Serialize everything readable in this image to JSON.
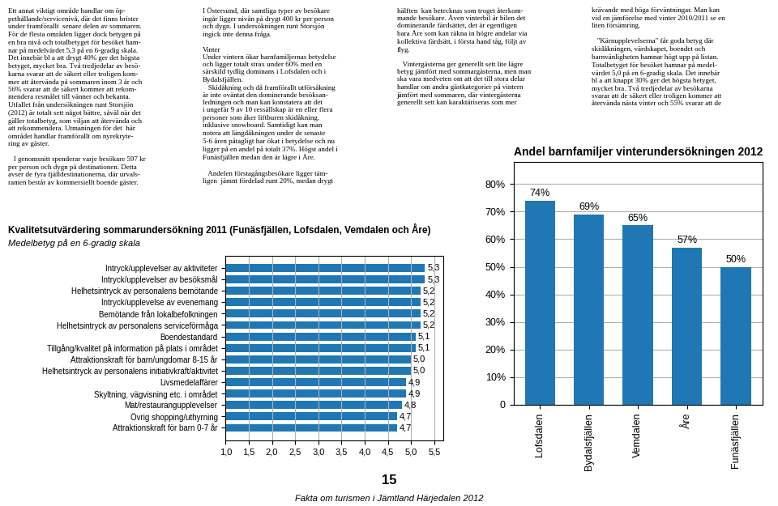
{
  "chart_data": [
    {
      "type": "bar",
      "title": "Andel barnfamiljer vinterundersökningen 2012",
      "categories": [
        "Lofsdalen",
        "Bydalsfjällen",
        "Vemdalen",
        "Åre",
        "Funäsfjällen"
      ],
      "values": [
        74,
        69,
        65,
        57,
        50
      ],
      "value_labels": [
        "74%",
        "69%",
        "65%",
        "57%",
        "50%"
      ],
      "data_labels": true,
      "ylim": [
        0,
        88
      ],
      "yticks": [
        0,
        {
          "value": 10,
          "label": "10%"
        },
        {
          "value": 20,
          "label": "20%"
        },
        {
          "value": 30,
          "label": "30%"
        },
        {
          "value": 40,
          "label": "40%"
        },
        {
          "value": 50,
          "label": "50%"
        },
        {
          "value": 60,
          "label": "60%"
        },
        {
          "value": 70,
          "label": "70%"
        },
        {
          "value": 80,
          "label": "80%"
        }
      ],
      "grid": true
    },
    {
      "type": "bar",
      "orientation": "horizontal",
      "title": "Kvalitetsutvärdering sommarundersökning 2011 (Funäsfjällen, Lofsdalen, Vemdalen och Åre)",
      "subtitle": "Medelbetyg på en 6-gradig skala",
      "categories": [
        "Intryck/upplevelser av aktiviteter",
        "Intryck/upplevelser av besöksmål",
        "Helhetsintryck av personalens bemötande",
        "Intryck/upplevelse av evenemang",
        "Bemötande från lokalbefolkningen",
        "Helhetsintryck av personalens serviceförmåga",
        "Boendestandard",
        "Tillgång/kvalitet på information på plats i området",
        "Attraktionskraft för barn/ungdomar 8-15 år",
        "Helhetsintryck av personalens initiativkraft/aktivitet",
        "Livsmedelaffärer",
        "Skyltning, vägvisning etc. i området",
        "Mat/restaurangupplevelser",
        "Övrig shopping/uthyrning",
        "Attraktionskraft för barn 0-7 år"
      ],
      "values": [
        5.3,
        5.3,
        5.2,
        5.2,
        5.2,
        5.2,
        5.1,
        5.1,
        5.0,
        5.0,
        4.9,
        4.9,
        4.8,
        4.7,
        4.7
      ],
      "value_labels": [
        "5,3",
        "5,3",
        "5,2",
        "5,2",
        "5,2",
        "5,2",
        "5,1",
        "5,1",
        "5,0",
        "5,0",
        "4,9",
        "4,9",
        "4,8",
        "4,7",
        "4,7"
      ],
      "data_labels": true,
      "xlim": [
        1.0,
        5.7
      ],
      "xticks": [
        {
          "value": 1.0,
          "label": "1,0"
        },
        {
          "value": 1.5,
          "label": "1,5"
        },
        {
          "value": 2.0,
          "label": "2,0"
        },
        {
          "value": 2.5,
          "label": "2,5"
        },
        {
          "value": 3.0,
          "label": "3,0"
        },
        {
          "value": 3.5,
          "label": "3,5"
        },
        {
          "value": 4.0,
          "label": "4,0"
        },
        {
          "value": 4.5,
          "label": "4,5"
        },
        {
          "value": 5.0,
          "label": "5,0"
        },
        {
          "value": 5.5,
          "label": "5,5"
        }
      ],
      "grid": true
    }
  ],
  "annotations": [
    "Ett annat viktigt område handlar om öp-\npethållande/servicenivå, där det finns brister\nunder framförallt  senare delen av sommaren.\nFör de flesta områden ligger dock betygen på\nen bra nivå och totalbetyget för besöket ham-\nnar på medelvärdet 5,3 på en 6-gradig skala.\nDet innebär bl a att drygt 40% ger det högsta\nbetyget, mycket bra. Två tredjedelar av besö-\nkarna svarar att de säkert eller troligen kom-\nmer att återvända på sommaren inom 3 år och\n56% svarar att de säkert kommer att rekom-\nmendera resmålet till vänner och bekanta.\nUtfallet från undersökningen runt Storsjön\n(2012) är totalt sett något bättre, såväl när det\ngäller totalbetyg, som viljan att återvända och\natt rekommendera. Utmaningen för det  här\nområdet handlar framförallt om nyrekryte-\nring av gäster.\n\n   I genomsnitt spenderar varje besökare 597 kr\nper person och dygn på destinationen. Detta\navser de fyra fjälldestinationerna, där urvals-\nramen består av kommersiellt boende gäster.",
    "I Östersund, där samtliga typer av besökare\ningår ligger nivån på drygt 400 kr per person\noch dygn. I undersökningen runt Storsjön\ningick inte denna fråga.\n\nVinter\nUnder vintern ökar barnfamiljernas betydelse\noch ligger totalt strax under 60% med en\nsärskild tydlig dominans i Lofsdalen och i\nBydalsfjällen.\n   Skidåkning och då framförallt utförsåkning\när inte oväntat den dominerande besöksan-\nledningen och man kan konstatera att det\ni ungefär 9 av 10 ressällskap är en eller flera\npersoner som åker liftburen skidåkning,\ninklusive snowboard. Samtidigt kan man\nnotera att längdåkningen under de senaste\n5-6 åren påtagligt har ökat i betydelse och nu\nligger på en andel på totalt 37%. Högst andel i\nFunäsfjällen medan den är lägre i Åre.\n\n   Andelen förstagångsbesökare ligger täm-\nligen  jämnt fördelad runt 20%, medan drygt",
    "hälften  kan betecknas som troget återkom-\nmande besökare. Även vinterbil är bilen det\ndominerande färdsättet, det är egentligen\nbara Åre som kan räkna in högre andelar via\nkollektiva färdsätt, i första hand tåg, följt av\nflyg.\n\n   Vintergästerna ger generellt sett lite lägre\nbetyg jämfört med sommargästerna, men man\nska vara medveten om att det till stora delar\nhandlar om andra gästkategorier på vintern\njämfört med sommaren, där vintergästerna\ngenerellt sett kan karaktäriseras som mer",
    "krävande med höga förväntningar. Man kan\nvid en jämförelse med vinter 2010/2011 se en\nliten försämring.\n\n   \"Kärnupplevelserna\" får goda betyg där\nskidåkningen, värdskapet, boendet och\nbarnvänligheten hamnar högt upp på listan.\nTotalbetyget för besöket hamnar på medel-\nvärdet 5,0 på en 6-gradig skala. Det innebär\nbl a att knappt 30% ger det högsta betyget,\nmycket bra. Två tredjedelar av besökarna\nsvarar att de säkert eller troligen kommer att\nåtervända nästa vinter och 55% svarar att de",
    "15",
    "Fakta om turismen i Jämtland Härjedalen 2012"
  ]
}
